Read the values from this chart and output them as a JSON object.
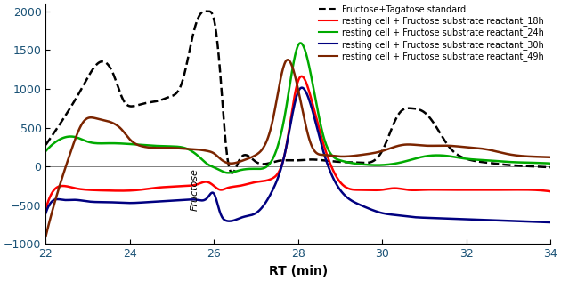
{
  "xlabel": "RT (min)",
  "xlim": [
    22,
    34
  ],
  "ylim": [
    -1000,
    2100
  ],
  "yticks": [
    -1000,
    -500,
    0,
    500,
    1000,
    1500,
    2000
  ],
  "xticks": [
    22,
    24,
    26,
    28,
    30,
    32,
    34
  ],
  "fructose_label": "Fructose",
  "fructose_x": 25.55,
  "fructose_y": -20,
  "legend_entries": [
    "Fructose+Tagatose standard",
    "resting cell + Fructose substrate reactant_18h",
    "resting cell + Fructose substrate reactant_24h",
    "resting cell + Fructose substrate reactant_30h",
    "resting cell + Fructose substrate reactant_49h"
  ],
  "colors": {
    "standard": "#000000",
    "18h": "#ff0000",
    "24h": "#00aa00",
    "30h": "#000080",
    "49h": "#7b2500"
  },
  "standard_x": [
    22.0,
    22.4,
    22.9,
    23.3,
    23.6,
    23.85,
    24.1,
    24.4,
    24.7,
    24.95,
    25.25,
    25.55,
    25.75,
    25.85,
    26.0,
    26.15,
    26.3,
    26.6,
    27.0,
    27.5,
    28.0,
    28.3,
    28.6,
    29.0,
    29.5,
    30.0,
    30.4,
    30.7,
    31.0,
    31.3,
    31.6,
    32.0,
    32.5,
    33.0,
    33.5,
    34.0
  ],
  "standard_y": [
    280,
    600,
    1050,
    1350,
    1200,
    850,
    780,
    820,
    850,
    900,
    1100,
    1800,
    2000,
    2000,
    1900,
    1200,
    200,
    80,
    60,
    70,
    80,
    90,
    80,
    60,
    50,
    200,
    680,
    750,
    700,
    500,
    250,
    100,
    50,
    20,
    5,
    -10
  ],
  "h18_x": [
    22.0,
    22.2,
    22.4,
    22.7,
    23.0,
    23.5,
    24.0,
    24.4,
    24.7,
    25.0,
    25.3,
    25.6,
    25.85,
    26.0,
    26.15,
    26.3,
    26.6,
    27.0,
    27.4,
    27.7,
    28.0,
    28.3,
    28.6,
    29.0,
    29.5,
    30.0,
    30.3,
    30.6,
    31.0,
    31.5,
    32.0,
    32.5,
    33.0,
    33.5,
    34.0
  ],
  "h18_y": [
    -550,
    -300,
    -250,
    -280,
    -300,
    -310,
    -310,
    -290,
    -270,
    -260,
    -250,
    -230,
    -200,
    -250,
    -300,
    -280,
    -250,
    -200,
    -150,
    200,
    1100,
    900,
    300,
    -200,
    -300,
    -300,
    -280,
    -300,
    -300,
    -300,
    -300,
    -300,
    -300,
    -300,
    -320
  ],
  "h24_x": [
    22.0,
    22.3,
    22.7,
    23.0,
    23.5,
    24.0,
    24.5,
    25.0,
    25.4,
    25.7,
    25.85,
    26.0,
    26.15,
    26.3,
    26.6,
    27.0,
    27.4,
    27.7,
    28.0,
    28.3,
    28.6,
    29.0,
    29.5,
    30.0,
    30.5,
    31.0,
    31.5,
    32.0,
    32.5,
    33.0,
    33.5,
    34.0
  ],
  "h24_y": [
    200,
    340,
    380,
    320,
    300,
    290,
    270,
    260,
    220,
    100,
    30,
    -10,
    -50,
    -80,
    -50,
    -30,
    100,
    700,
    1560,
    1200,
    400,
    80,
    30,
    20,
    60,
    130,
    140,
    100,
    80,
    60,
    50,
    40
  ],
  "h30_x": [
    22.0,
    22.2,
    22.4,
    22.7,
    23.0,
    23.5,
    24.0,
    24.4,
    24.7,
    25.0,
    25.3,
    25.6,
    25.85,
    26.0,
    26.15,
    26.3,
    26.7,
    27.0,
    27.4,
    27.7,
    28.0,
    28.3,
    28.6,
    29.0,
    29.5,
    30.0,
    30.4,
    30.7,
    31.0,
    31.5,
    32.0,
    32.5,
    33.0,
    33.5,
    34.0
  ],
  "h30_y": [
    -600,
    -430,
    -430,
    -430,
    -450,
    -460,
    -470,
    -460,
    -450,
    -440,
    -430,
    -430,
    -400,
    -350,
    -600,
    -700,
    -650,
    -600,
    -300,
    200,
    960,
    800,
    200,
    -300,
    -500,
    -600,
    -630,
    -650,
    -660,
    -670,
    -680,
    -690,
    -700,
    -710,
    -720
  ],
  "h49_x": [
    22.0,
    22.3,
    22.6,
    22.9,
    23.2,
    23.5,
    23.8,
    24.0,
    24.3,
    24.7,
    25.0,
    25.3,
    25.6,
    25.85,
    26.0,
    26.15,
    26.3,
    26.7,
    27.0,
    27.4,
    27.7,
    28.0,
    28.3,
    28.6,
    29.0,
    29.5,
    30.0,
    30.5,
    31.0,
    31.5,
    32.0,
    32.5,
    33.0,
    33.5,
    34.0
  ],
  "h49_y": [
    -900,
    -300,
    200,
    580,
    620,
    580,
    480,
    350,
    260,
    240,
    240,
    230,
    220,
    200,
    170,
    100,
    50,
    80,
    150,
    600,
    1350,
    1000,
    300,
    150,
    130,
    150,
    200,
    280,
    270,
    270,
    250,
    220,
    160,
    130,
    120
  ]
}
